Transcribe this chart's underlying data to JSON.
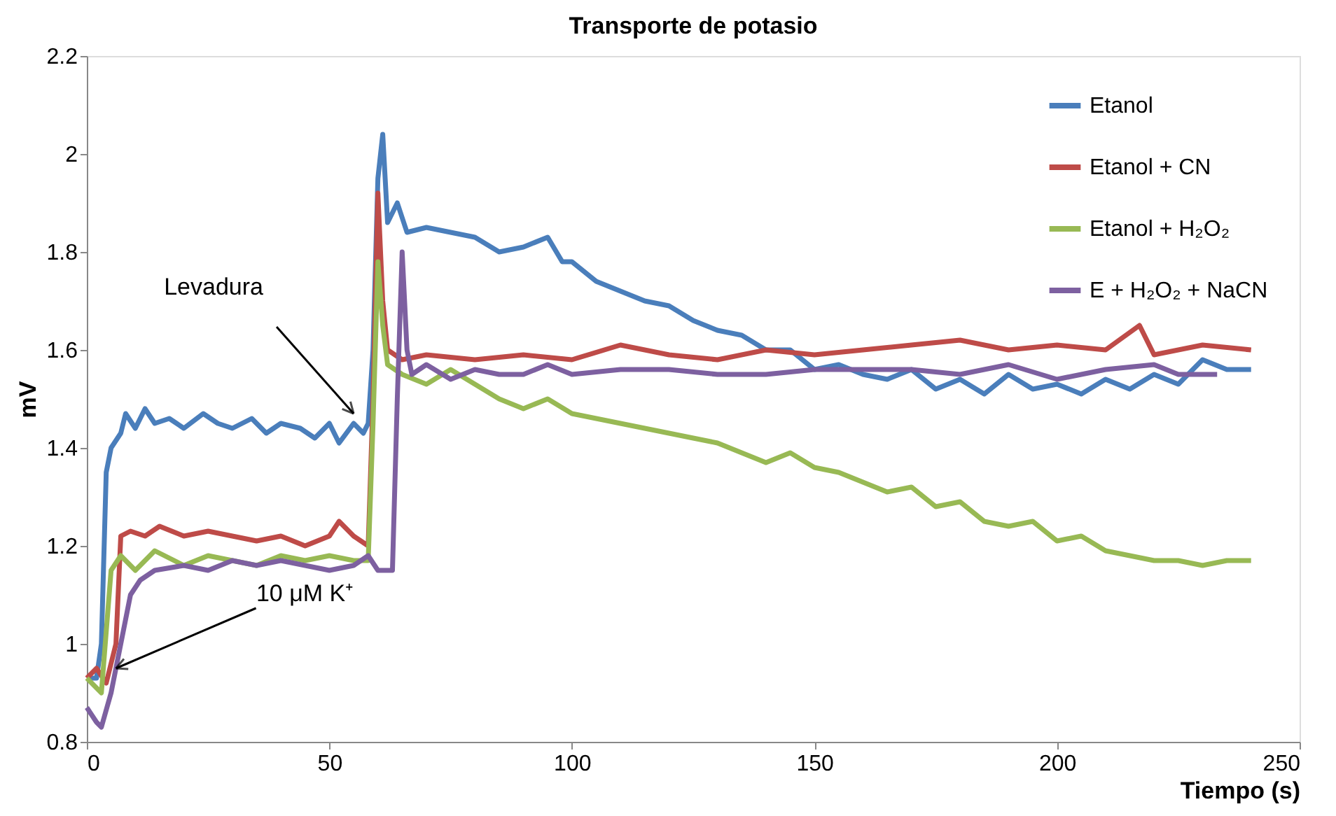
{
  "chart_data": {
    "type": "line",
    "title": "Transporte de potasio",
    "xlabel": "Tiempo (s)",
    "ylabel": "mV",
    "xlim": [
      0,
      250
    ],
    "xticks": [
      0,
      50,
      100,
      150,
      200,
      250
    ],
    "ylim": [
      0.8,
      2.2
    ],
    "yticks": [
      0.8,
      1,
      1.2,
      1.4,
      1.6,
      1.8,
      2,
      2.2
    ],
    "grid": false,
    "legend": "top right",
    "marker": "none",
    "line_style": "solid",
    "annotations": [
      {
        "text": "Levadura",
        "x": 55,
        "y": 1.47
      },
      {
        "text": "10 μM  K⁺",
        "x": 6,
        "y": 0.95
      }
    ],
    "series": [
      {
        "name": "Etanol",
        "color": "#4a7ebb",
        "x": [
          0,
          2,
          3,
          4,
          5,
          7,
          8,
          10,
          12,
          14,
          17,
          20,
          24,
          27,
          30,
          34,
          37,
          40,
          44,
          47,
          50,
          52,
          55,
          57,
          58,
          59,
          60,
          61,
          62,
          64,
          66,
          70,
          75,
          80,
          85,
          90,
          95,
          98,
          100,
          105,
          110,
          115,
          120,
          125,
          130,
          135,
          140,
          145,
          150,
          155,
          160,
          165,
          170,
          175,
          180,
          185,
          190,
          195,
          200,
          205,
          210,
          215,
          220,
          225,
          230,
          235,
          240
        ],
        "values": [
          0.93,
          0.93,
          1.0,
          1.35,
          1.4,
          1.43,
          1.47,
          1.44,
          1.48,
          1.45,
          1.46,
          1.44,
          1.47,
          1.45,
          1.44,
          1.46,
          1.43,
          1.45,
          1.44,
          1.42,
          1.45,
          1.41,
          1.45,
          1.43,
          1.45,
          1.6,
          1.95,
          2.04,
          1.86,
          1.9,
          1.84,
          1.85,
          1.84,
          1.83,
          1.8,
          1.81,
          1.83,
          1.78,
          1.78,
          1.74,
          1.72,
          1.7,
          1.69,
          1.66,
          1.64,
          1.63,
          1.6,
          1.6,
          1.56,
          1.57,
          1.55,
          1.54,
          1.56,
          1.52,
          1.54,
          1.51,
          1.55,
          1.52,
          1.53,
          1.51,
          1.54,
          1.52,
          1.55,
          1.53,
          1.58,
          1.56,
          1.56
        ]
      },
      {
        "name": "Etanol + CN",
        "color": "#be4b48",
        "x": [
          0,
          2,
          4,
          6,
          7,
          9,
          12,
          15,
          20,
          25,
          30,
          35,
          40,
          45,
          50,
          52,
          55,
          58,
          59,
          60,
          61,
          62,
          65,
          70,
          80,
          90,
          100,
          110,
          120,
          130,
          140,
          150,
          160,
          170,
          180,
          190,
          200,
          210,
          217,
          220,
          230,
          240
        ],
        "values": [
          0.93,
          0.95,
          0.92,
          1.0,
          1.22,
          1.23,
          1.22,
          1.24,
          1.22,
          1.23,
          1.22,
          1.21,
          1.22,
          1.2,
          1.22,
          1.25,
          1.22,
          1.2,
          1.5,
          1.92,
          1.7,
          1.6,
          1.58,
          1.59,
          1.58,
          1.59,
          1.58,
          1.61,
          1.59,
          1.58,
          1.6,
          1.59,
          1.6,
          1.61,
          1.62,
          1.6,
          1.61,
          1.6,
          1.65,
          1.59,
          1.61,
          1.6
        ]
      },
      {
        "name": "Etanol + H₂O₂",
        "color": "#98b954",
        "x": [
          0,
          3,
          5,
          7,
          10,
          14,
          20,
          25,
          30,
          35,
          40,
          45,
          50,
          55,
          58,
          59,
          60,
          61,
          62,
          65,
          70,
          75,
          80,
          85,
          90,
          95,
          100,
          105,
          110,
          115,
          120,
          125,
          130,
          135,
          140,
          145,
          150,
          155,
          160,
          165,
          170,
          175,
          180,
          185,
          190,
          195,
          200,
          205,
          210,
          215,
          220,
          225,
          230,
          235,
          240
        ],
        "values": [
          0.93,
          0.9,
          1.15,
          1.18,
          1.15,
          1.19,
          1.16,
          1.18,
          1.17,
          1.16,
          1.18,
          1.17,
          1.18,
          1.17,
          1.17,
          1.45,
          1.78,
          1.65,
          1.57,
          1.55,
          1.53,
          1.56,
          1.53,
          1.5,
          1.48,
          1.5,
          1.47,
          1.46,
          1.45,
          1.44,
          1.43,
          1.42,
          1.41,
          1.39,
          1.37,
          1.39,
          1.36,
          1.35,
          1.33,
          1.31,
          1.32,
          1.28,
          1.29,
          1.25,
          1.24,
          1.25,
          1.21,
          1.22,
          1.19,
          1.18,
          1.17,
          1.17,
          1.16,
          1.17,
          1.17
        ]
      },
      {
        "name": "E + H₂O₂ + NaCN",
        "color": "#7d60a0",
        "x": [
          0,
          2,
          3,
          5,
          7,
          9,
          11,
          14,
          20,
          25,
          30,
          35,
          40,
          45,
          50,
          55,
          58,
          60,
          63,
          64,
          65,
          66,
          67,
          70,
          75,
          80,
          85,
          90,
          95,
          100,
          110,
          120,
          130,
          140,
          150,
          160,
          170,
          180,
          190,
          200,
          210,
          220,
          225,
          233
        ],
        "values": [
          0.87,
          0.84,
          0.83,
          0.9,
          1.0,
          1.1,
          1.13,
          1.15,
          1.16,
          1.15,
          1.17,
          1.16,
          1.17,
          1.16,
          1.15,
          1.16,
          1.18,
          1.15,
          1.15,
          1.5,
          1.8,
          1.6,
          1.55,
          1.57,
          1.54,
          1.56,
          1.55,
          1.55,
          1.57,
          1.55,
          1.56,
          1.56,
          1.55,
          1.55,
          1.56,
          1.56,
          1.56,
          1.55,
          1.57,
          1.54,
          1.56,
          1.57,
          1.55,
          1.55
        ]
      }
    ]
  }
}
